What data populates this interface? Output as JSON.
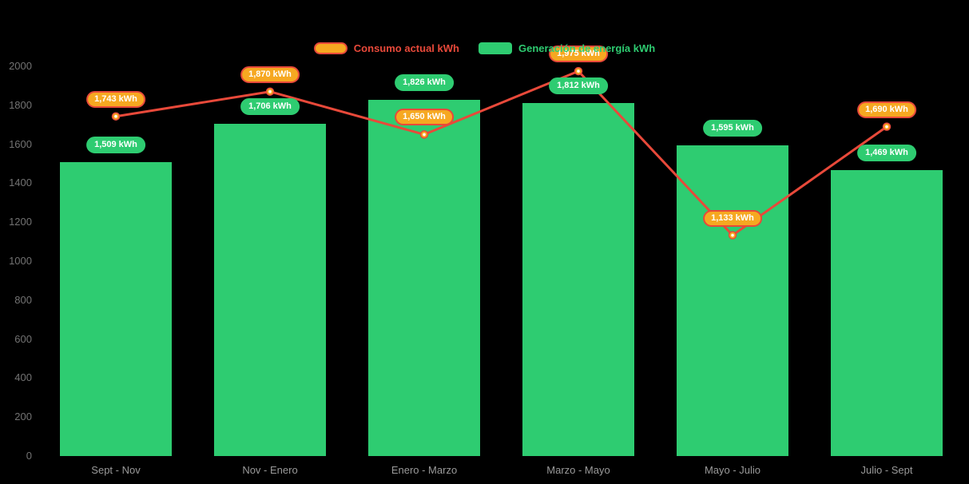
{
  "chart_data": {
    "type": "bar",
    "subtype": "combo-bar-line",
    "title": "",
    "categories": [
      "Sept - Nov",
      "Nov - Enero",
      "Enero - Marzo",
      "Marzo - Mayo",
      "Mayo - Julio",
      "Julio - Sept"
    ],
    "series": [
      {
        "name": "Consumo actual kWh",
        "type": "line",
        "color": "#e8493a",
        "marker_color": "#f6a821",
        "values": [
          1743,
          1870,
          1650,
          1975,
          1133,
          1690
        ],
        "labels": [
          "1,743 kWh",
          "1,870 kWh",
          "1,650 kWh",
          "1,975 kWh",
          "1,133 kWh",
          "1,690 kWh"
        ]
      },
      {
        "name": "Generación de energía kWh",
        "type": "bar",
        "color": "#2ecc71",
        "values": [
          1509,
          1706,
          1826,
          1812,
          1595,
          1469
        ],
        "labels": [
          "1,509 kWh",
          "1,706 kWh",
          "1,826 kWh",
          "1,812 kWh",
          "1,595 kWh",
          "1,469 kWh"
        ]
      }
    ],
    "ylim": [
      0,
      2000
    ],
    "yticks": [
      0,
      200,
      400,
      600,
      800,
      1000,
      1200,
      1400,
      1600,
      1800,
      2000
    ],
    "xlabel": "",
    "ylabel": "",
    "grid": false,
    "legend_position": "top",
    "background": "#000000",
    "text_colors": {
      "y_axis": "#737373",
      "x_axis": "#9a9a9a",
      "pill_text": "#ffffff"
    }
  }
}
